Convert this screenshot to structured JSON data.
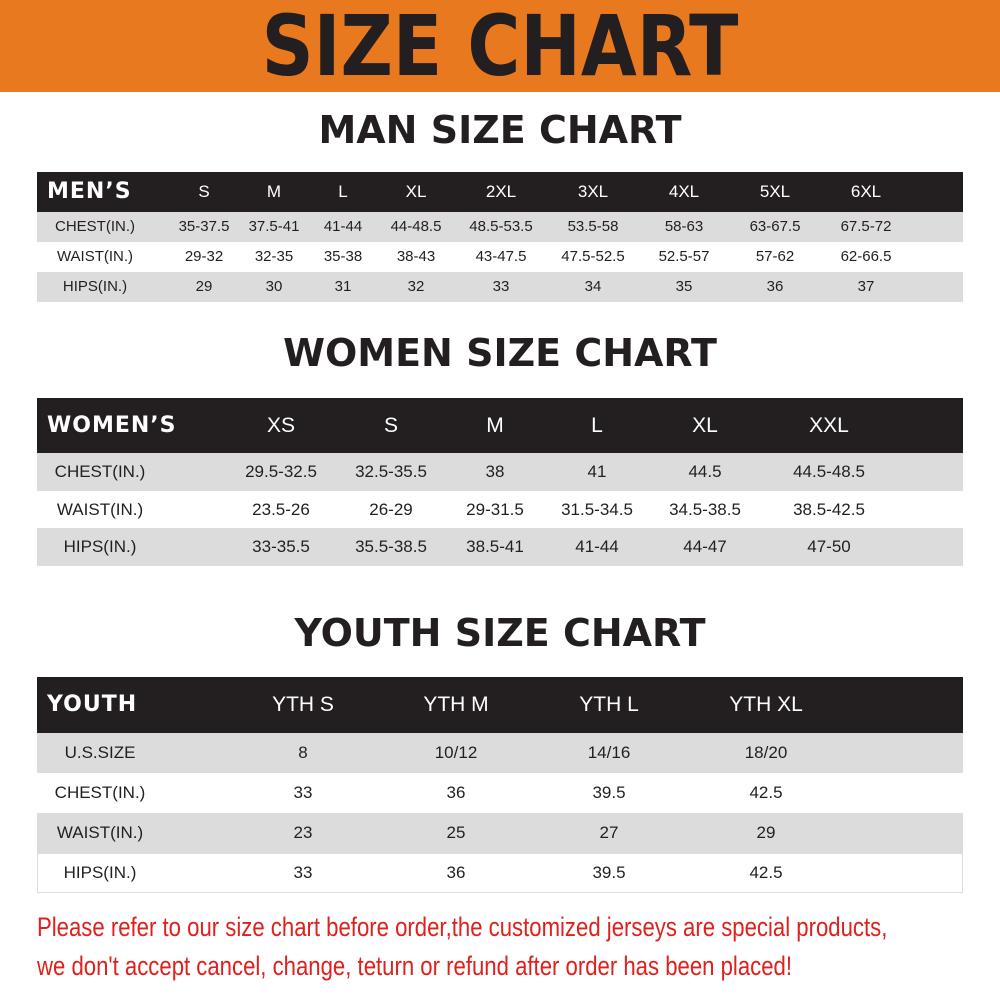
{
  "banner_title": "SIZE CHART",
  "colors": {
    "banner": "#e8791f",
    "header": "#231f20",
    "stripe": "#dcdcdc",
    "notice": "#e0201c"
  },
  "men": {
    "title": "MAN SIZE CHART",
    "header": [
      "MEN’S",
      "S",
      "M",
      "L",
      "XL",
      "2XL",
      "3XL",
      "4XL",
      "5XL",
      "6XL"
    ],
    "rows": [
      [
        "CHEST(IN.)",
        "35-37.5",
        "37.5-41",
        "41-44",
        "44-48.5",
        "48.5-53.5",
        "53.5-58",
        "58-63",
        "63-67.5",
        "67.5-72"
      ],
      [
        "WAIST(IN.)",
        "29-32",
        "32-35",
        "35-38",
        "38-43",
        "43-47.5",
        "47.5-52.5",
        "52.5-57",
        "57-62",
        "62-66.5"
      ],
      [
        "HIPS(IN.)",
        "29",
        "30",
        "31",
        "32",
        "33",
        "34",
        "35",
        "36",
        "37"
      ]
    ]
  },
  "women": {
    "title": "WOMEN SIZE CHART",
    "header": [
      "WOMEN’S",
      "XS",
      "S",
      "M",
      "L",
      "XL",
      "XXL"
    ],
    "rows": [
      [
        "CHEST(IN.)",
        "29.5-32.5",
        "32.5-35.5",
        "38",
        "41",
        "44.5",
        "44.5-48.5"
      ],
      [
        "WAIST(IN.)",
        "23.5-26",
        "26-29",
        "29-31.5",
        "31.5-34.5",
        "34.5-38.5",
        "38.5-42.5"
      ],
      [
        "HIPS(IN.)",
        "33-35.5",
        "35.5-38.5",
        "38.5-41",
        "41-44",
        "44-47",
        "47-50"
      ]
    ]
  },
  "youth": {
    "title": "YOUTH SIZE CHART",
    "header": [
      "YOUTH",
      "YTH S",
      "YTH M",
      "YTH L",
      "YTH XL"
    ],
    "rows": [
      [
        "U.S.SIZE",
        "8",
        "10/12",
        "14/16",
        "18/20"
      ],
      [
        "CHEST(IN.)",
        "33",
        "36",
        "39.5",
        "42.5"
      ],
      [
        "WAIST(IN.)",
        "23",
        "25",
        "27",
        "29"
      ],
      [
        "HIPS(IN.)",
        "33",
        "36",
        "39.5",
        "42.5"
      ]
    ]
  },
  "notice": [
    "Please refer to our size chart before order,the customized jerseys are special products,",
    "we don't accept cancel, change, teturn or refund after order has been placed!"
  ]
}
